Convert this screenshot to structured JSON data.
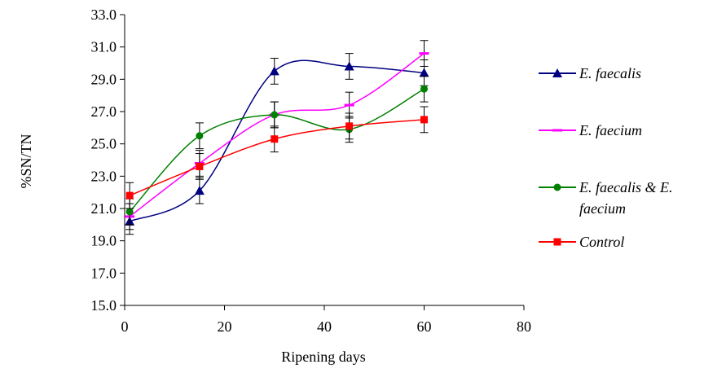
{
  "chart_data": {
    "type": "line",
    "title": "",
    "xlabel": "Ripening days",
    "ylabel": "%SN/TN",
    "xlim": [
      0,
      80
    ],
    "ylim": [
      15.0,
      33.0
    ],
    "x_ticks": [
      "0",
      "20",
      "40",
      "60",
      "80"
    ],
    "y_ticks": [
      "15.0",
      "17.0",
      "19.0",
      "21.0",
      "23.0",
      "25.0",
      "27.0",
      "29.0",
      "31.0",
      "33.0"
    ],
    "grid": false,
    "legend_position": "right",
    "x": [
      1,
      15,
      30,
      45,
      60
    ],
    "series": [
      {
        "name": "E. faecalis",
        "color": "#000080",
        "marker": "triangle",
        "values": [
          20.2,
          22.1,
          29.5,
          29.8,
          29.4
        ],
        "errors": [
          0.8,
          0.8,
          0.8,
          0.8,
          0.8
        ]
      },
      {
        "name": "E. faecium",
        "color": "#ff00ff",
        "marker": "dash",
        "values": [
          20.5,
          23.8,
          26.8,
          27.4,
          30.6
        ],
        "errors": [
          0.8,
          0.8,
          0.8,
          0.8,
          0.8
        ]
      },
      {
        "name": "E. faecalis & E. faecium",
        "legend_lines": [
          "E. faecalis & E.",
          "faecium"
        ],
        "color": "#008000",
        "marker": "circle",
        "values": [
          20.8,
          25.5,
          26.8,
          25.9,
          28.4
        ],
        "errors": [
          0.8,
          0.8,
          0.8,
          0.8,
          0.8
        ]
      },
      {
        "name": "Control",
        "color": "#ff0000",
        "marker": "square",
        "values": [
          21.8,
          23.6,
          25.3,
          26.1,
          26.5
        ],
        "errors": [
          0.8,
          0.8,
          0.8,
          0.8,
          0.8
        ]
      }
    ]
  }
}
